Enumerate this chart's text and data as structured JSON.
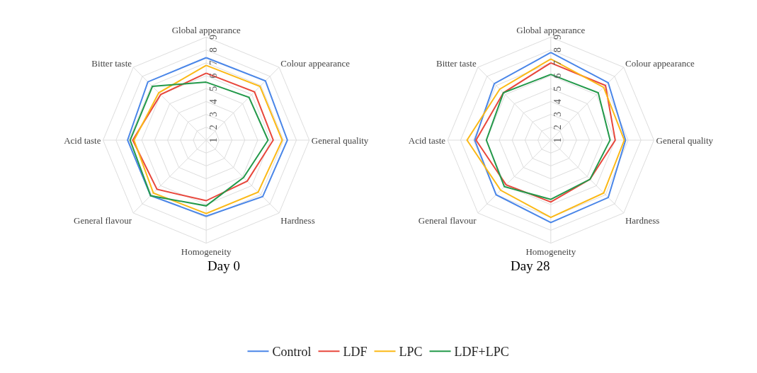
{
  "chart_data": [
    {
      "type": "radar",
      "title": "Day 0",
      "categories": [
        "Global appearance",
        "Colour appearance",
        "General quality",
        "Hardness",
        "Homogeneity",
        "General flavour",
        "Acid taste",
        "Bitter taste"
      ],
      "ylim": [
        1,
        9
      ],
      "yticks": [
        1,
        2,
        3,
        4,
        5,
        6,
        7,
        8,
        9
      ],
      "grid": true,
      "legend": "bottom",
      "series": [
        {
          "name": "Control",
          "color": "#4a86e8",
          "values": [
            7.4,
            7.5,
            7.3,
            7.2,
            6.9,
            7.1,
            7.1,
            7.4
          ]
        },
        {
          "name": "LDF",
          "color": "#e8473c",
          "values": [
            6.2,
            6.3,
            6.2,
            5.5,
            5.7,
            6.4,
            6.7,
            6.0
          ]
        },
        {
          "name": "LPC",
          "color": "#fbb917",
          "values": [
            6.8,
            6.9,
            6.9,
            6.7,
            6.7,
            6.8,
            6.6,
            6.2
          ]
        },
        {
          "name": "LDF+LPC",
          "color": "#23994a",
          "values": [
            5.5,
            5.7,
            5.8,
            5.1,
            6.1,
            7.1,
            6.9,
            6.9
          ]
        }
      ]
    },
    {
      "type": "radar",
      "title": "Day 28",
      "categories": [
        "Global appearance",
        "Colour appearance",
        "General quality",
        "Hardness",
        "Homogeneity",
        "General flavour",
        "Acid taste",
        "Bitter taste"
      ],
      "ylim": [
        1,
        9
      ],
      "yticks": [
        1,
        2,
        3,
        4,
        5,
        6,
        7,
        8,
        9
      ],
      "grid": true,
      "legend": "bottom",
      "series": [
        {
          "name": "Control",
          "color": "#4a86e8",
          "values": [
            7.8,
            7.3,
            6.8,
            7.3,
            7.4,
            7.0,
            6.9,
            7.2
          ]
        },
        {
          "name": "LDF",
          "color": "#e8473c",
          "values": [
            7.0,
            7.0,
            6.0,
            5.3,
            5.8,
            5.9,
            6.8,
            6.2
          ]
        },
        {
          "name": "LPC",
          "color": "#fbb917",
          "values": [
            7.3,
            6.8,
            6.7,
            6.8,
            7.0,
            6.5,
            7.5,
            6.6
          ]
        },
        {
          "name": "LDF+LPC",
          "color": "#23994a",
          "values": [
            6.1,
            6.2,
            5.6,
            5.3,
            5.6,
            6.1,
            6.0,
            6.2
          ]
        }
      ]
    }
  ]
}
